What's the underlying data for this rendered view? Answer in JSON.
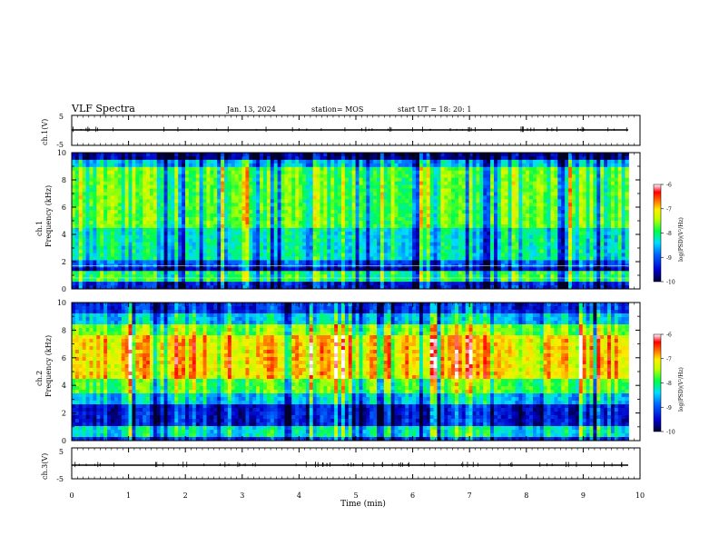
{
  "header": {
    "title": "VLF Spectra",
    "date": "Jan. 13, 2024",
    "station": "station= MOS",
    "start": "start  UT  =   18: 20: 1"
  },
  "chart_data": [
    {
      "type": "line",
      "panel": "ch1-waveform",
      "ylabel": "ch.1(V)",
      "ylim": [
        -5,
        5
      ],
      "yticks": [
        "5",
        "-5"
      ],
      "xlim": [
        0,
        10
      ],
      "series": [
        {
          "values_description_free": true,
          "x": [
            0,
            9.8
          ],
          "y": [
            0,
            0
          ]
        }
      ]
    },
    {
      "type": "heatmap",
      "panel": "ch1-spectrogram",
      "ylabel": "ch.1\nFrequency  (kHz)",
      "ylim": [
        0,
        10
      ],
      "yticks": [
        "0",
        "2",
        "4",
        "6",
        "8",
        "10"
      ],
      "xlim": [
        0,
        9.8
      ],
      "colorbar": {
        "label": "log(PSD)(V²/Hz)",
        "range": [
          -10,
          -6
        ],
        "ticks": [
          "-6",
          "-7",
          "-8",
          "-9",
          "-10"
        ]
      }
    },
    {
      "type": "heatmap",
      "panel": "ch2-spectrogram",
      "ylabel": "ch.2\nFrequency  (kHz)",
      "ylim": [
        0,
        10
      ],
      "yticks": [
        "0",
        "2",
        "4",
        "6",
        "8",
        "10"
      ],
      "xlim": [
        0,
        9.8
      ],
      "colorbar": {
        "label": "log(PSD)(V²/Hz)",
        "range": [
          -10,
          -6
        ],
        "ticks": [
          "-6",
          "-7",
          "-8",
          "-9",
          "-10"
        ]
      }
    },
    {
      "type": "line",
      "panel": "ch3-waveform",
      "ylabel": "ch.3(V)",
      "ylim": [
        -5,
        5
      ],
      "yticks": [
        "5",
        "-5"
      ],
      "xlim": [
        0,
        10
      ],
      "series": [
        {
          "x": [
            0,
            9.8
          ],
          "y": [
            0,
            0
          ]
        }
      ]
    }
  ],
  "xaxis": {
    "label": "Time  (min)",
    "ticks": [
      "0",
      "1",
      "2",
      "3",
      "4",
      "5",
      "6",
      "7",
      "8",
      "9",
      "10"
    ]
  },
  "colors": {
    "colormap": [
      "#000033",
      "#0000aa",
      "#0033ff",
      "#00ccff",
      "#00ff66",
      "#99ff00",
      "#ffff00",
      "#ff8800",
      "#ff0000",
      "#ff99aa",
      "#ffffff"
    ]
  }
}
